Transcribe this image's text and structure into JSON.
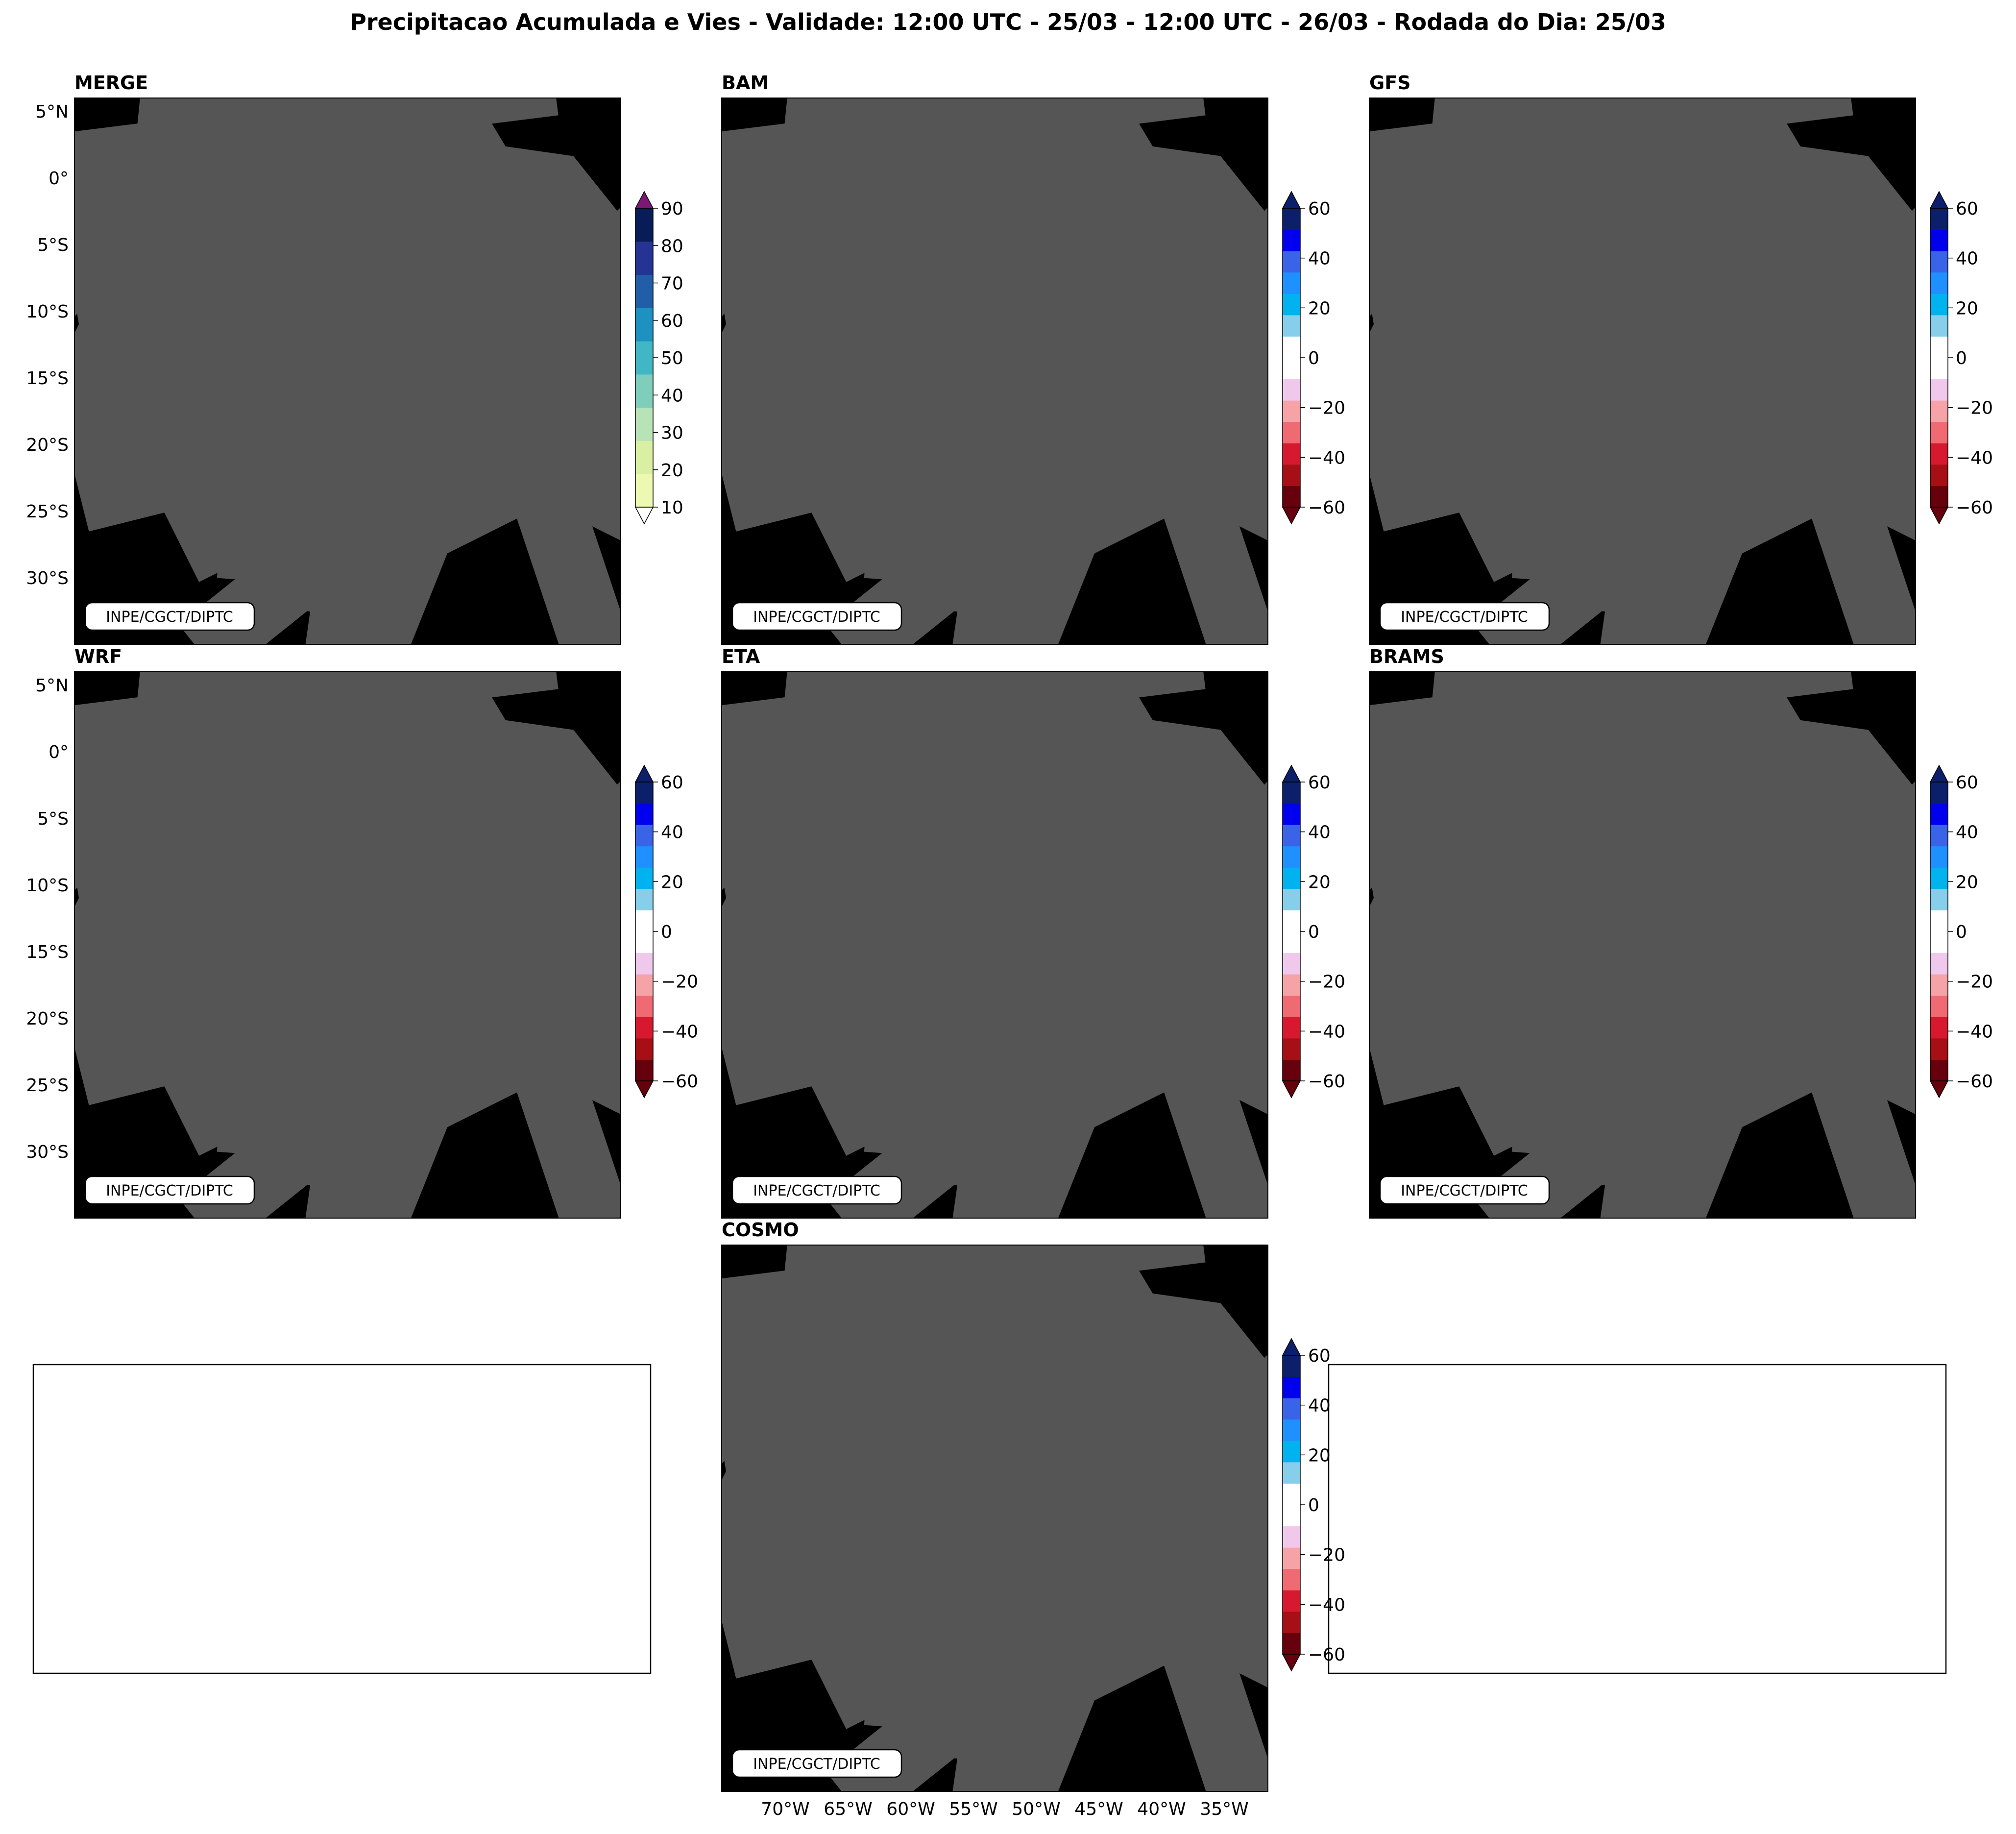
{
  "figure_title": "Precipitacao Acumulada e Vies - Validade: 12:00 UTC - 25/03 - 12:00 UTC - 26/03 - Rodada do Dia: 25/03",
  "credit": "INPE/CGCT/DIPTC",
  "lat_labels": [
    "5°N",
    "0°",
    "5°S",
    "10°S",
    "15°S",
    "20°S",
    "25°S",
    "30°S"
  ],
  "lon_labels": [
    "70°W",
    "65°W",
    "60°W",
    "55°W",
    "50°W",
    "45°W",
    "40°W",
    "35°W"
  ],
  "colors": {
    "merge_levels": [
      "#edf8b1",
      "#d9f0a3",
      "#b8e3b6",
      "#7fcdbb",
      "#41b6c4",
      "#1d91c0",
      "#225ea8",
      "#253494",
      "#081d58"
    ],
    "merge_over": "#7b1874",
    "bias_levels": [
      "#67000d",
      "#a50f15",
      "#d7192f",
      "#ef6a72",
      "#f6a3a8",
      "#f0c8ec",
      "#ffffff",
      "#ffffff",
      "#87ceeb",
      "#00b2ee",
      "#1e90ff",
      "#3a64e8",
      "#0000ee",
      "#0b1f6b"
    ],
    "bias_under": "#67000d",
    "bias_over": "#0b1f6b"
  },
  "panels": [
    {
      "name": "MERGE",
      "type": "precipitation",
      "colorbar": {
        "ticks": [
          "90",
          "80",
          "70",
          "60",
          "50",
          "40",
          "30",
          "20",
          "10"
        ],
        "min": 10,
        "max": 90,
        "extend": "both"
      }
    },
    {
      "name": "BAM",
      "type": "bias",
      "colorbar": {
        "ticks": [
          "60",
          "40",
          "20",
          "0",
          "−20",
          "−40",
          "−60"
        ],
        "min": -60,
        "max": 60,
        "extend": "both"
      }
    },
    {
      "name": "GFS",
      "type": "bias",
      "colorbar": {
        "ticks": [
          "60",
          "40",
          "20",
          "0",
          "−20",
          "−40",
          "−60"
        ],
        "min": -60,
        "max": 60,
        "extend": "both"
      }
    },
    {
      "name": "WRF",
      "type": "bias",
      "colorbar": {
        "ticks": [
          "60",
          "40",
          "20",
          "0",
          "−20",
          "−40",
          "−60"
        ],
        "min": -60,
        "max": 60,
        "extend": "both"
      }
    },
    {
      "name": "ETA",
      "type": "bias",
      "colorbar": {
        "ticks": [
          "60",
          "40",
          "20",
          "0",
          "−20",
          "−40",
          "−60"
        ],
        "min": -60,
        "max": 60,
        "extend": "both"
      }
    },
    {
      "name": "BRAMS",
      "type": "bias",
      "colorbar": {
        "ticks": [
          "60",
          "40",
          "20",
          "0",
          "−20",
          "−40",
          "−60"
        ],
        "min": -60,
        "max": 60,
        "extend": "both"
      }
    },
    {
      "name": "COSMO",
      "type": "bias",
      "colorbar": {
        "ticks": [
          "60",
          "40",
          "20",
          "0",
          "−20",
          "−40",
          "−60"
        ],
        "min": -60,
        "max": 60,
        "extend": "both"
      }
    }
  ]
}
